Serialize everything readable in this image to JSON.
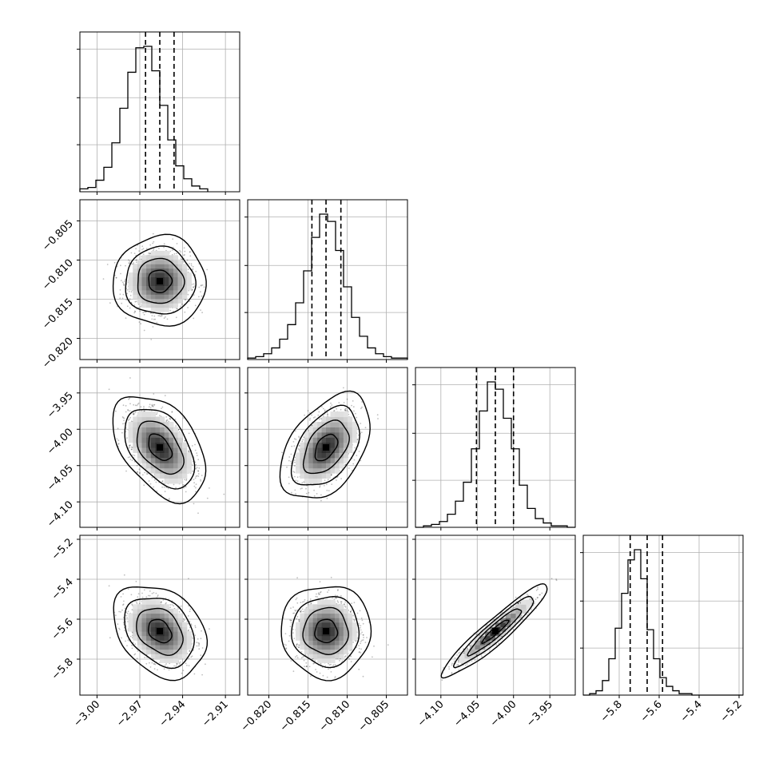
{
  "chart_data": {
    "type": "corner",
    "grid": true,
    "parameters": [
      {
        "range": [
          -3.012,
          -2.9
        ],
        "ticks": [
          -3.0,
          -2.97,
          -2.94,
          -2.91
        ],
        "tick_labels": [
          "−3.00",
          "−2.97",
          "−2.94",
          "−2.91"
        ],
        "mean": -2.956,
        "sd": 0.0105,
        "quantiles": [
          -2.966,
          -2.956,
          -2.946
        ],
        "hist": {
          "edges_from": -3.012,
          "bin_width": 0.0056,
          "counts": [
            2,
            3,
            8,
            17,
            34,
            58,
            83,
            100,
            101,
            84,
            60,
            36,
            18,
            9,
            4,
            2
          ]
        }
      },
      {
        "range": [
          -0.8227,
          -0.8023
        ],
        "ticks": [
          -0.82,
          -0.815,
          -0.81,
          -0.805
        ],
        "tick_labels": [
          "−0.820",
          "−0.815",
          "−0.810",
          "−0.805"
        ],
        "mean": -0.8127,
        "sd": 0.00185,
        "quantiles": [
          -0.8145,
          -0.8127,
          -0.8108
        ],
        "hist": {
          "edges_from": -0.8227,
          "bin_width": 0.00102,
          "counts": [
            1,
            2,
            4,
            8,
            14,
            24,
            39,
            61,
            84,
            100,
            95,
            75,
            50,
            29,
            16,
            8,
            4,
            2,
            1,
            1
          ]
        }
      },
      {
        "range": [
          -4.135,
          -3.915
        ],
        "ticks": [
          -4.1,
          -4.05,
          -4.0,
          -3.95
        ],
        "tick_labels": [
          "−4.10",
          "−4.05",
          "−4.00",
          "−3.95"
        ],
        "mean": -4.025,
        "sd": 0.0235,
        "quantiles": [
          -4.051,
          -4.025,
          -4.0
        ],
        "hist": {
          "edges_from": -4.135,
          "bin_width": 0.011,
          "counts": [
            0,
            1,
            2,
            4,
            9,
            18,
            31,
            54,
            80,
            100,
            95,
            75,
            54,
            29,
            13,
            6,
            3,
            1,
            1,
            0
          ]
        }
      },
      {
        "range": [
          -5.98,
          -5.18
        ],
        "ticks": [
          -5.8,
          -5.6,
          -5.4,
          -5.2
        ],
        "tick_labels": [
          "−5.8",
          "−5.6",
          "−5.4",
          "−5.2"
        ],
        "mean": -5.66,
        "sd": 0.075,
        "quantiles": [
          -5.745,
          -5.66,
          -5.583
        ],
        "hist": {
          "edges_from": -5.98,
          "bin_width": 0.032,
          "counts": [
            0,
            1,
            3,
            10,
            25,
            46,
            70,
            93,
            100,
            80,
            45,
            25,
            12,
            6,
            3,
            1,
            1,
            0,
            0,
            0,
            0,
            0,
            0,
            0,
            0
          ]
        }
      }
    ],
    "pairs": [
      {
        "row": 1,
        "col": 0,
        "correlation": 0.0
      },
      {
        "row": 2,
        "col": 0,
        "correlation": -0.45
      },
      {
        "row": 2,
        "col": 1,
        "correlation": 0.45
      },
      {
        "row": 3,
        "col": 0,
        "correlation": -0.3
      },
      {
        "row": 3,
        "col": 1,
        "correlation": 0.0
      },
      {
        "row": 3,
        "col": 2,
        "correlation": 0.94
      }
    ],
    "contour_levels_sigma": [
      0.5,
      1.0,
      1.5,
      2.0
    ]
  }
}
